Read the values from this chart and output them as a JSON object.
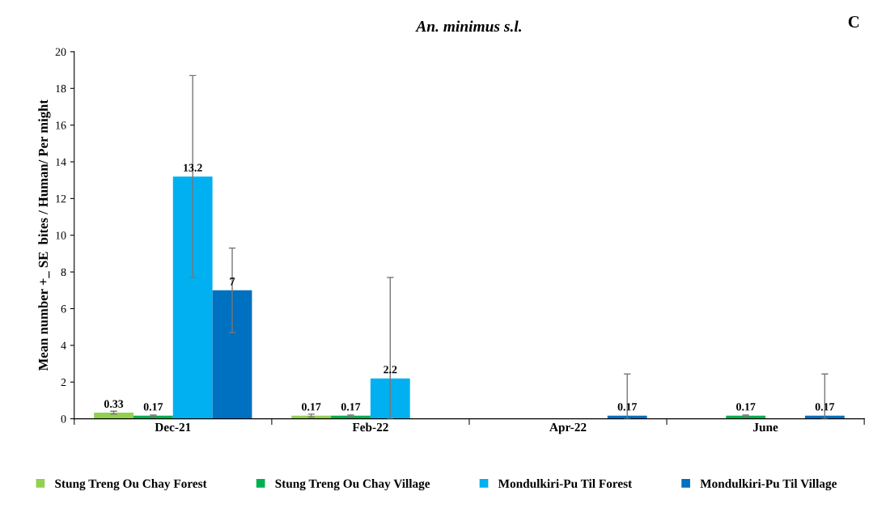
{
  "chart_data": {
    "type": "bar",
    "title": "An. minimus s.l.",
    "ylabel": "Mean number +_ SE  bites / Human/ Per might",
    "annotations": [
      "C"
    ],
    "categories": [
      "Dec-21",
      "Feb-22",
      "Apr-22",
      "June"
    ],
    "series": [
      {
        "name": "Stung Treng Ou Chay Forest",
        "color": "#92d050",
        "values": [
          0.33,
          0.17,
          null,
          null
        ],
        "errors": [
          0.08,
          0.08,
          null,
          null
        ]
      },
      {
        "name": "Stung Treng Ou Chay Village",
        "color": "#00b050",
        "values": [
          0.17,
          0.17,
          null,
          0.17
        ],
        "errors": [
          0.03,
          0.03,
          null,
          0.03
        ]
      },
      {
        "name": "Mondulkiri-Pu Til Forest",
        "color": "#00b0f0",
        "values": [
          13.2,
          2.2,
          null,
          null
        ],
        "errors": [
          5.5,
          [
            0,
            7.7
          ],
          null,
          null
        ]
      },
      {
        "name": "Mondulkiri-Pu Til Village",
        "color": "#0070c0",
        "values": [
          7,
          null,
          0.17,
          0.17
        ],
        "errors": [
          2.3,
          null,
          [
            0,
            2.44
          ],
          [
            0,
            2.44
          ]
        ]
      }
    ],
    "ylim": [
      0,
      20
    ],
    "yticks": [
      0,
      2,
      4,
      6,
      8,
      10,
      12,
      14,
      16,
      18,
      20
    ],
    "data_labels": true,
    "grid": false,
    "legend": "bottom"
  }
}
